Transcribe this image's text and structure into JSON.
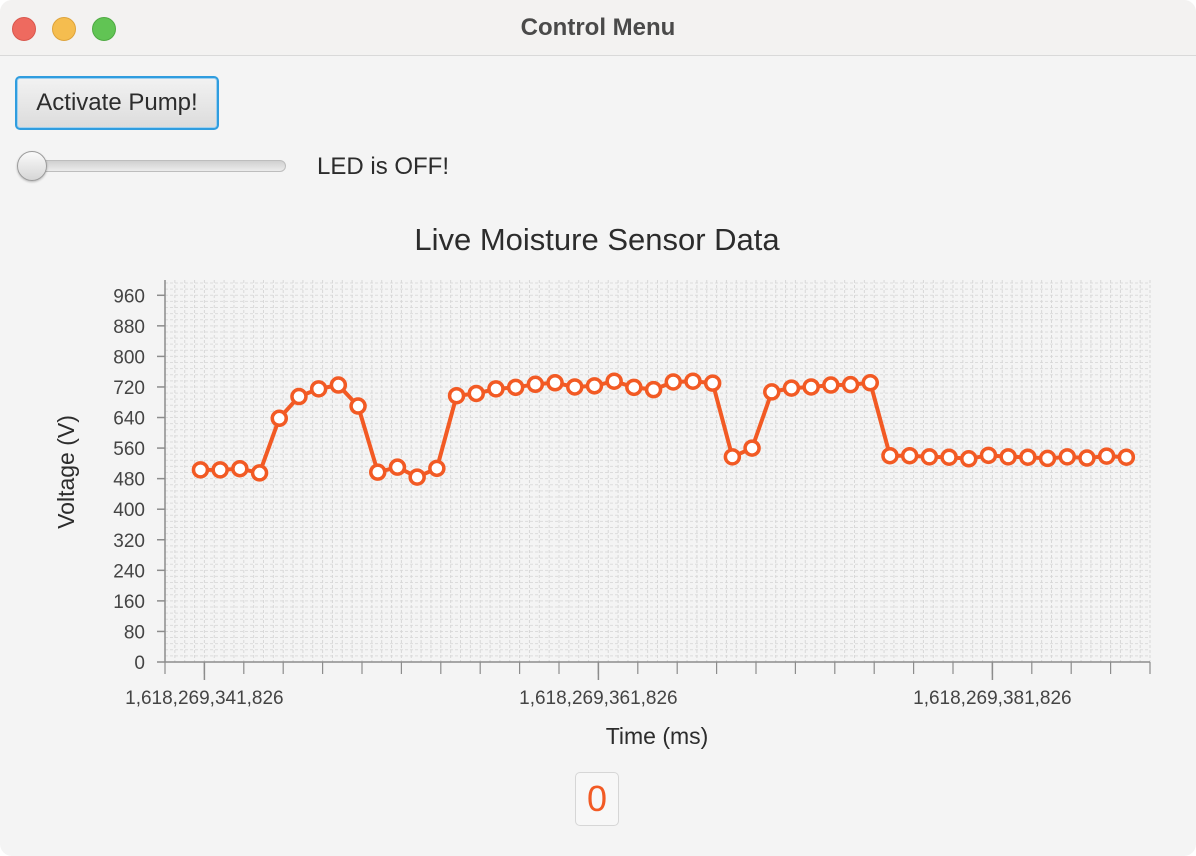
{
  "window": {
    "title": "Control Menu"
  },
  "controls": {
    "pump_button_label": "Activate Pump!",
    "led_slider_value": 0,
    "led_status": "LED is OFF!"
  },
  "counter": {
    "value": "0"
  },
  "colors": {
    "series": "#f25a24",
    "accent": "#2f9ddf"
  },
  "chart_data": {
    "type": "line",
    "title": "Live Moisture Sensor Data",
    "xlabel": "Time (ms)",
    "ylabel": "Voltage (V)",
    "ylim": [
      0,
      1000
    ],
    "yticks": [
      0,
      80,
      160,
      240,
      320,
      400,
      480,
      560,
      640,
      720,
      800,
      880,
      960
    ],
    "xlim": [
      1618269339826,
      1618269389826
    ],
    "xtick_labels": [
      "1,618,269,341,826",
      "1,618,269,361,826",
      "1,618,269,381,826"
    ],
    "xtick_values": [
      1618269341826,
      1618269361826,
      1618269381826
    ],
    "grid": true,
    "legend": "none",
    "series": [
      {
        "x": [
          1618269341626,
          1618269342626,
          1618269343626,
          1618269344626,
          1618269345626,
          1618269346626,
          1618269347626,
          1618269348626,
          1618269349626,
          1618269350626,
          1618269351626,
          1618269352626,
          1618269353626,
          1618269354626,
          1618269355626,
          1618269356626,
          1618269357626,
          1618269358626,
          1618269359626,
          1618269360626,
          1618269361626,
          1618269362626,
          1618269363626,
          1618269364626,
          1618269365626,
          1618269366626,
          1618269367626,
          1618269368626,
          1618269369626,
          1618269370626,
          1618269371626,
          1618269372626,
          1618269373626,
          1618269374626,
          1618269375626,
          1618269376626,
          1618269377626,
          1618269378626,
          1618269379626,
          1618269380626,
          1618269381626,
          1618269382626,
          1618269383626,
          1618269384626,
          1618269385626,
          1618269386626,
          1618269387626,
          1618269388626
        ],
        "values": [
          503,
          503,
          506,
          495,
          638,
          695,
          715,
          725,
          670,
          497,
          510,
          484,
          507,
          697,
          703,
          715,
          719,
          727,
          731,
          720,
          723,
          735,
          719,
          713,
          733,
          735,
          730,
          537,
          560,
          707,
          717,
          720,
          725,
          726,
          731,
          540,
          540,
          537,
          536,
          532,
          541,
          537,
          536,
          533,
          537,
          534,
          539,
          536
        ]
      }
    ]
  }
}
